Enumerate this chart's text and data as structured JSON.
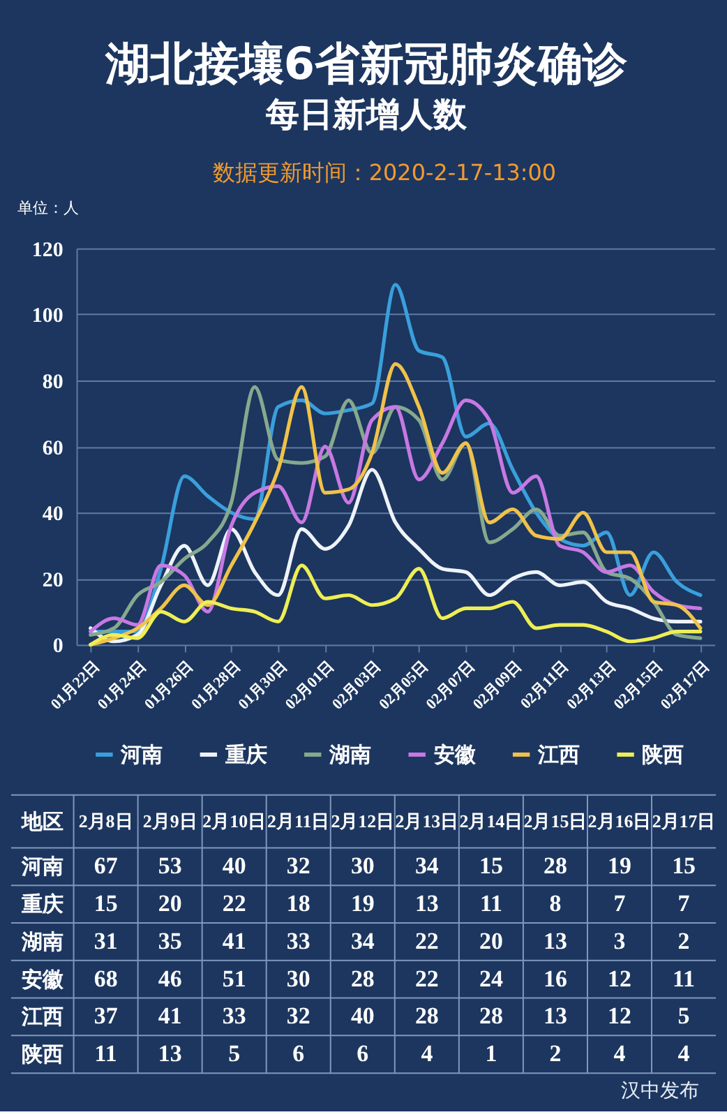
{
  "chart_data": [
    {
      "type": "line",
      "title": "湖北接壤6省新冠肺炎确诊",
      "subtitle": "每日新增人数",
      "ylabel": "单位：人",
      "annotations": [
        "数据更新时间：2020-2-17-13:00"
      ],
      "categories": [
        "01月22日",
        null,
        "01月24日",
        null,
        "01月26日",
        null,
        "01月28日",
        null,
        "01月30日",
        null,
        "02月01日",
        null,
        "02月03日",
        null,
        "02月05日",
        null,
        "02月07日",
        null,
        "02月09日",
        null,
        "02月11日",
        null,
        "02月13日",
        null,
        "02月15日",
        null,
        "02月17日"
      ],
      "ylim": [
        0,
        120
      ],
      "yticks": [
        0,
        20,
        40,
        60,
        80,
        100,
        120
      ],
      "grid": "y",
      "legend": "bottom",
      "series": [
        {
          "name": "河南",
          "color": "#3a9fdc",
          "values": [
            4,
            4,
            4,
            23,
            51,
            45,
            40,
            38,
            72,
            74,
            70,
            71,
            73,
            109,
            89,
            87,
            63,
            67,
            53,
            40,
            32,
            30,
            34,
            15,
            28,
            19,
            15
          ]
        },
        {
          "name": "重庆",
          "color": "#eef3fa",
          "values": [
            5,
            1,
            3,
            18,
            30,
            18,
            35,
            22,
            15,
            35,
            29,
            36,
            53,
            37,
            29,
            23,
            22,
            15,
            20,
            22,
            18,
            19,
            13,
            11,
            8,
            7,
            7
          ]
        },
        {
          "name": "湖南",
          "color": "#86a98f",
          "values": [
            3,
            5,
            15,
            19,
            26,
            31,
            43,
            78,
            56,
            55,
            57,
            74,
            58,
            72,
            68,
            50,
            61,
            31,
            35,
            41,
            33,
            34,
            22,
            20,
            13,
            3,
            2
          ]
        },
        {
          "name": "安徽",
          "color": "#c878e4",
          "values": [
            4,
            8,
            6,
            24,
            21,
            10,
            36,
            46,
            48,
            37,
            60,
            43,
            68,
            72,
            50,
            61,
            74,
            68,
            46,
            51,
            30,
            28,
            22,
            24,
            16,
            12,
            11
          ]
        },
        {
          "name": "江西",
          "color": "#f0c24a",
          "values": [
            0,
            2,
            5,
            11,
            18,
            12,
            24,
            37,
            53,
            78,
            46,
            47,
            58,
            85,
            72,
            52,
            61,
            37,
            41,
            33,
            32,
            40,
            28,
            28,
            13,
            12,
            5
          ]
        },
        {
          "name": "陕西",
          "color": "#eeee55",
          "values": [
            0,
            3,
            2,
            10,
            7,
            13,
            11,
            10,
            7,
            24,
            14,
            15,
            12,
            14,
            23,
            8,
            11,
            11,
            13,
            5,
            6,
            6,
            4,
            1,
            2,
            4,
            4
          ]
        }
      ]
    },
    {
      "type": "other",
      "ylabel": "地区",
      "categories": [
        "2月8日",
        "2月9日",
        "2月10日",
        "2月11日",
        "2月12日",
        "2月13日",
        "2月14日",
        "2月15日",
        "2月16日",
        "2月17日"
      ],
      "data_labels": true,
      "annotations": [
        "汉中发布"
      ],
      "series": [
        {
          "name": "河南",
          "values": [
            67,
            53,
            40,
            32,
            30,
            34,
            15,
            28,
            19,
            15
          ]
        },
        {
          "name": "重庆",
          "values": [
            15,
            20,
            22,
            18,
            19,
            13,
            11,
            8,
            7,
            7
          ]
        },
        {
          "name": "湖南",
          "values": [
            31,
            35,
            41,
            33,
            34,
            22,
            20,
            13,
            3,
            2
          ]
        },
        {
          "name": "安徽",
          "values": [
            68,
            46,
            51,
            30,
            28,
            22,
            24,
            16,
            12,
            11
          ]
        },
        {
          "name": "江西",
          "values": [
            37,
            41,
            33,
            32,
            40,
            28,
            28,
            13,
            12,
            5
          ]
        },
        {
          "name": "陕西",
          "values": [
            11,
            13,
            5,
            6,
            6,
            4,
            1,
            2,
            4,
            4
          ]
        }
      ]
    }
  ]
}
